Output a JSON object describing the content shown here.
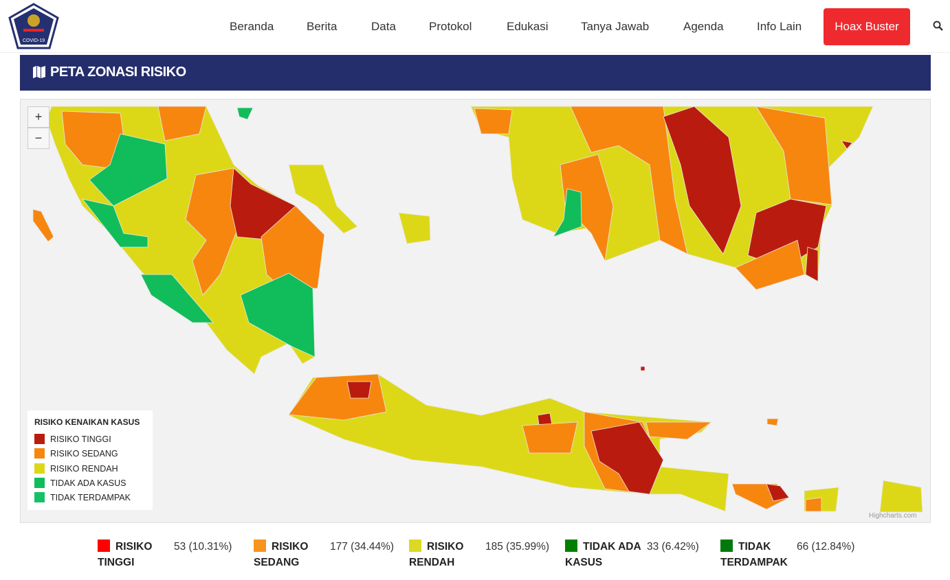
{
  "nav": {
    "logo_text": "COVID-19",
    "items": [
      "Beranda",
      "Berita",
      "Data",
      "Protokol",
      "Edukasi",
      "Tanya Jawab",
      "Agenda",
      "Info Lain"
    ],
    "button": "Hoax Buster"
  },
  "section": {
    "title": "PETA ZONASI RISIKO"
  },
  "map": {
    "zoom_in": "+",
    "zoom_out": "−",
    "credit": "Highcharts.com",
    "legend": {
      "title": "RISIKO KENAIKAN KASUS",
      "items": [
        {
          "label": "RISIKO TINGGI",
          "color": "#b91c0e"
        },
        {
          "label": "RISIKO SEDANG",
          "color": "#f7860f"
        },
        {
          "label": "RISIKO RENDAH",
          "color": "#dcd818"
        },
        {
          "label": "TIDAK ADA KASUS",
          "color": "#10bd5a"
        },
        {
          "label": "TIDAK TERDAMPAK",
          "color": "#14c266"
        }
      ]
    }
  },
  "stats": [
    {
      "label": "RISIKO TINGGI",
      "value": "53 (10.31%)",
      "color": "#ff0000"
    },
    {
      "label": "RISIKO SEDANG",
      "value": "177 (34.44%)",
      "color": "#f7941d"
    },
    {
      "label": "RISIKO RENDAH",
      "value": "185 (35.99%)",
      "color": "#dcd823"
    },
    {
      "label": "TIDAK ADA KASUS",
      "value": "33 (6.42%)",
      "color": "#008000"
    },
    {
      "label": "TIDAK TERDAMPAK",
      "value": "66 (12.84%)",
      "color": "#007a0c"
    }
  ]
}
